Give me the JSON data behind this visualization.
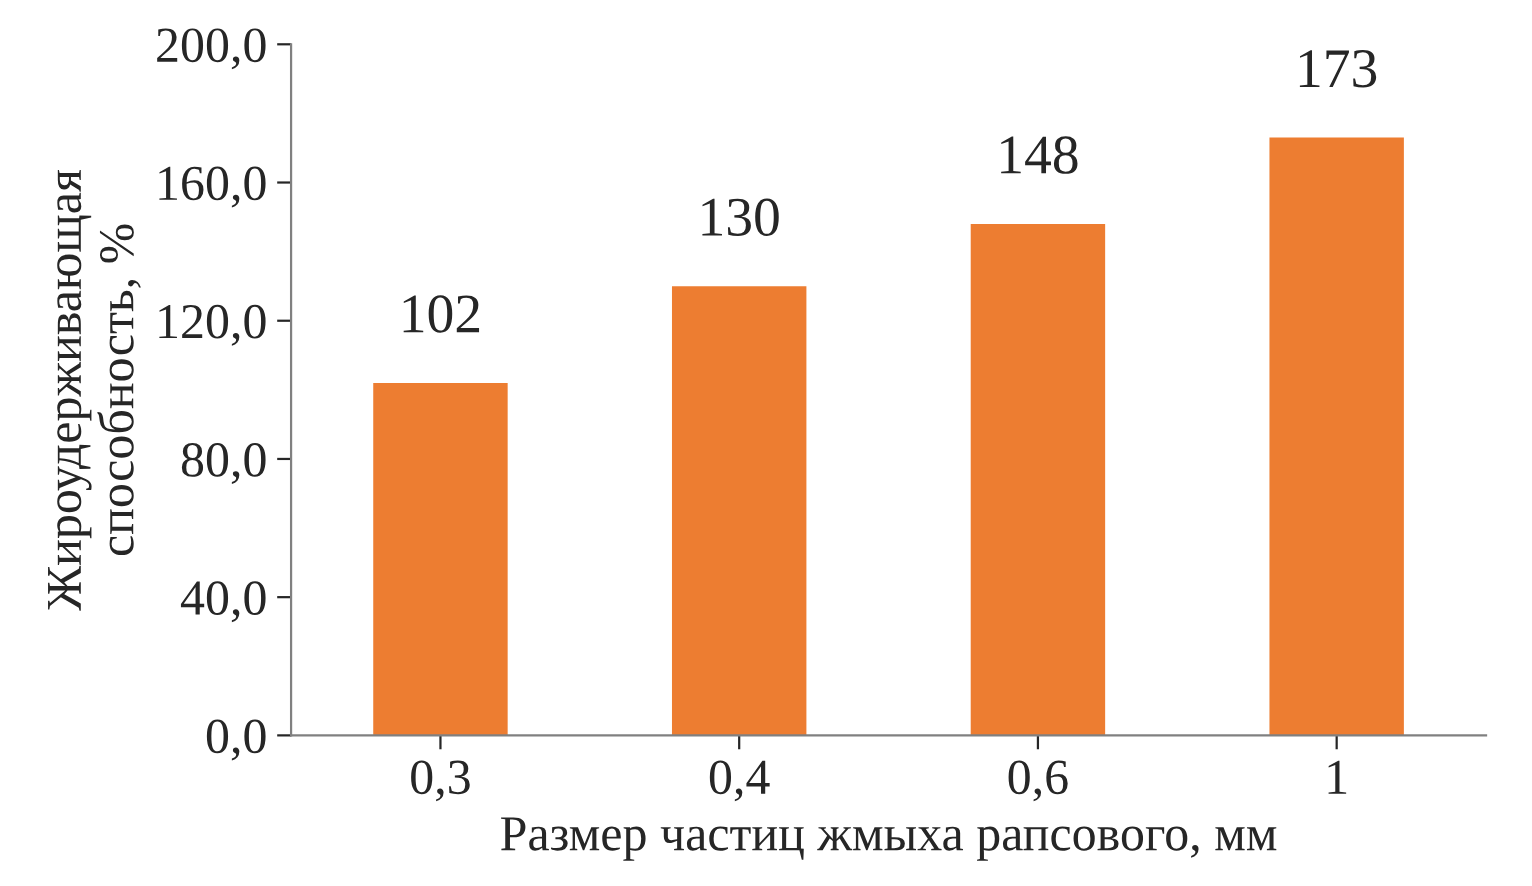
{
  "chart_data": {
    "type": "bar",
    "categories": [
      "0,3",
      "0,4",
      "0,6",
      "1"
    ],
    "values": [
      102,
      130,
      148,
      173
    ],
    "color": "#ed7d31",
    "xlabel": "Размер частиц жмыха рапсового, мм",
    "ylabel": "Жироудерживающая\nспособность, %",
    "ylim": [
      0,
      200
    ],
    "yticks": [
      {
        "value": 0,
        "label": "0,0"
      },
      {
        "value": 40,
        "label": "40,0"
      },
      {
        "value": 80,
        "label": "80,0"
      },
      {
        "value": 120,
        "label": "120,0"
      },
      {
        "value": 160,
        "label": "160,0"
      },
      {
        "value": 200,
        "label": "200,0"
      }
    ],
    "data_labels": true,
    "grid": false
  }
}
